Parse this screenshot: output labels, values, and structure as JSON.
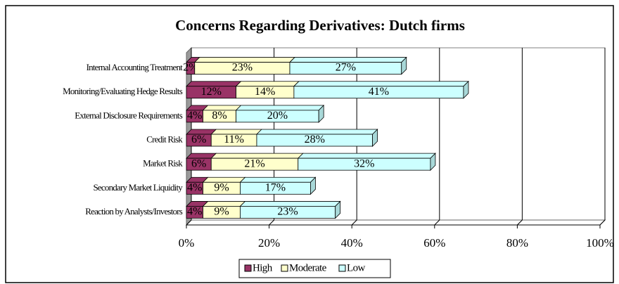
{
  "chart_data": {
    "type": "bar",
    "orientation": "horizontal",
    "stacked": true,
    "title": "Concerns Regarding Derivatives: Dutch firms",
    "categories": [
      "Internal Accounting Treatment",
      "Monitoring/Evaluating Hedge Results",
      "External Disclosure Requirements",
      "Credit Risk",
      "Market Risk",
      "Secondary Market Liquidity",
      "Reaction by Analysts/Investors"
    ],
    "series": [
      {
        "name": "High",
        "color": "#993366",
        "values": [
          2,
          12,
          4,
          6,
          6,
          4,
          4
        ],
        "value_labels": [
          "2%",
          "12%",
          "4%",
          "6%",
          "6%",
          "4%",
          "4%"
        ]
      },
      {
        "name": "Moderate",
        "color": "#ffffcc",
        "values": [
          23,
          14,
          8,
          11,
          21,
          9,
          9
        ],
        "value_labels": [
          "23%",
          "14%",
          "8%",
          "11%",
          "21%",
          "9%",
          "9%"
        ]
      },
      {
        "name": "Low",
        "color": "#ccffff",
        "values": [
          27,
          41,
          20,
          28,
          32,
          17,
          23
        ],
        "value_labels": [
          "27%",
          "41%",
          "20%",
          "28%",
          "32%",
          "17%",
          "23%"
        ]
      }
    ],
    "xlim": [
      0,
      100
    ],
    "xticks": [
      {
        "value": 0,
        "label": "0%"
      },
      {
        "value": 20,
        "label": "20%"
      },
      {
        "value": 40,
        "label": "40%"
      },
      {
        "value": 60,
        "label": "60%"
      },
      {
        "value": 80,
        "label": "80%"
      },
      {
        "value": 100,
        "label": "100%"
      }
    ],
    "grid": true,
    "legend": "bottom"
  }
}
